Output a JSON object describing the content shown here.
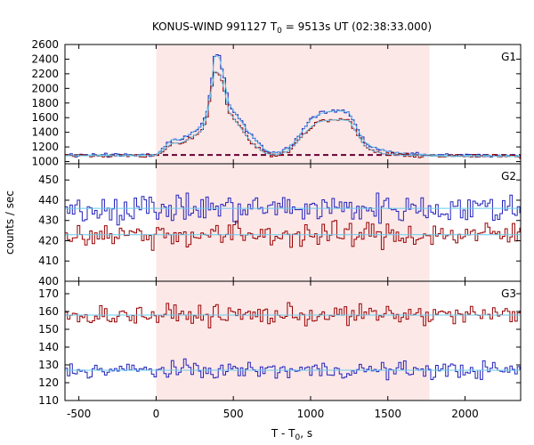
{
  "chart_data": {
    "type": "line",
    "title_main": "KONUS-WIND 991127 T",
    "title_sub": "0",
    "title_rest": " = 9513s UT (02:38:33.000)",
    "xlabel_main": "T - T",
    "xlabel_sub": "0",
    "xlabel_rest": ", s",
    "ylabel": "counts / sec",
    "xlim": [
      -590,
      2360
    ],
    "xticks": [
      -500,
      0,
      500,
      1000,
      1500,
      2000
    ],
    "highlight_interval": [
      0,
      1770
    ],
    "bin_width": 16,
    "colors": {
      "blue": "#2222bb",
      "red": "#990000",
      "fit": "#66ccee",
      "background_line": "#660033",
      "highlight": "#fde8e8"
    },
    "panels": [
      {
        "label": "G1",
        "ylim": [
          970,
          2600
        ],
        "yticks": [
          1000,
          1200,
          1400,
          1600,
          1800,
          2000,
          2200,
          2400,
          2600
        ],
        "background_level": 1090,
        "series": [
          {
            "name": "",
            "color_key": "blue",
            "profile": {
              "x": [
                -590,
                -100,
                0,
                40,
                100,
                150,
                200,
                250,
                300,
                330,
                360,
                380,
                410,
                440,
                470,
                500,
                540,
                600,
                650,
                700,
                750,
                800,
                850,
                900,
                950,
                1000,
                1050,
                1100,
                1150,
                1200,
                1250,
                1300,
                1350,
                1400,
                1450,
                1500,
                1600,
                1700,
                1800,
                2000,
                2360
              ],
              "y": [
                1090,
                1090,
                1095,
                1170,
                1300,
                1300,
                1350,
                1420,
                1500,
                1700,
                2100,
                2460,
                2420,
                2150,
                1800,
                1700,
                1580,
                1400,
                1280,
                1170,
                1120,
                1130,
                1180,
                1280,
                1430,
                1570,
                1640,
                1680,
                1690,
                1690,
                1670,
                1460,
                1270,
                1200,
                1170,
                1140,
                1110,
                1100,
                1090,
                1085,
                1080
              ]
            }
          },
          {
            "name": "",
            "color_key": "red",
            "profile": {
              "x": [
                -590,
                -100,
                0,
                40,
                100,
                150,
                200,
                250,
                300,
                330,
                360,
                380,
                410,
                440,
                470,
                500,
                540,
                600,
                650,
                700,
                750,
                800,
                850,
                900,
                950,
                1000,
                1050,
                1100,
                1150,
                1200,
                1250,
                1300,
                1350,
                1400,
                1450,
                1500,
                1600,
                1700,
                1800,
                2000,
                2360
              ],
              "y": [
                1080,
                1080,
                1085,
                1140,
                1250,
                1250,
                1290,
                1360,
                1430,
                1620,
                2000,
                2240,
                2200,
                2000,
                1680,
                1600,
                1480,
                1310,
                1200,
                1120,
                1090,
                1100,
                1140,
                1230,
                1360,
                1470,
                1540,
                1560,
                1570,
                1570,
                1560,
                1380,
                1220,
                1150,
                1120,
                1100,
                1085,
                1080,
                1075,
                1070,
                1070
              ]
            }
          }
        ]
      },
      {
        "label": "G2",
        "ylim": [
          400,
          458
        ],
        "yticks": [
          400,
          410,
          420,
          430,
          440,
          450
        ],
        "series": [
          {
            "name": "",
            "color_key": "blue",
            "level": 436,
            "scatter": 3.6
          },
          {
            "name": "",
            "color_key": "red",
            "level": 423,
            "scatter": 3.2
          }
        ]
      },
      {
        "label": "G3",
        "ylim": [
          110,
          177
        ],
        "yticks": [
          110,
          120,
          130,
          140,
          150,
          160,
          170
        ],
        "series": [
          {
            "name": "",
            "color_key": "red",
            "level": 158,
            "scatter": 2.8
          },
          {
            "name": "",
            "color_key": "blue",
            "level": 127,
            "scatter": 2.4
          }
        ]
      }
    ]
  }
}
